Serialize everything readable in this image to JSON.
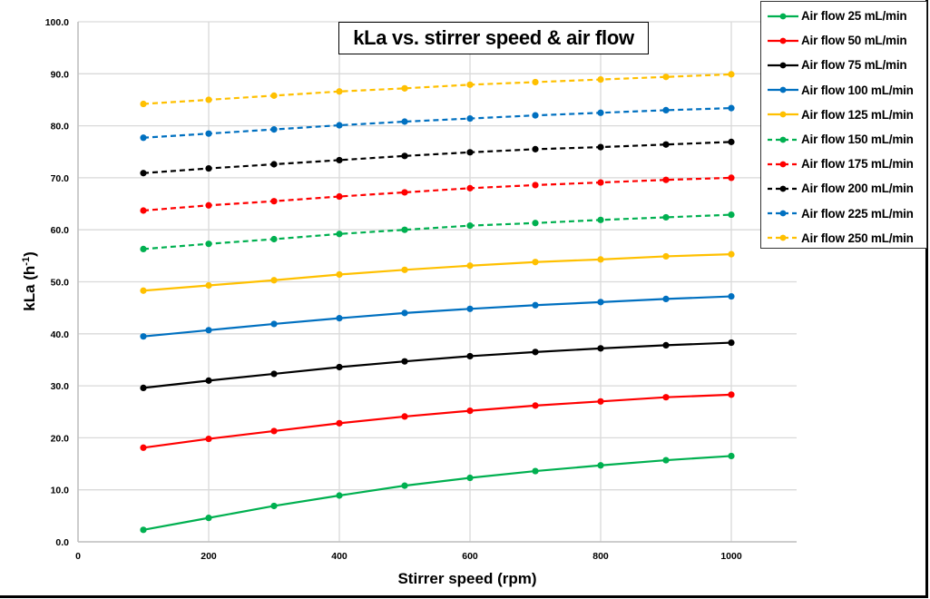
{
  "chart_data": {
    "type": "line",
    "title": "kLa vs. stirrer speed & air flow",
    "xlabel": "Stirrer speed (rpm)",
    "ylabel": "kLa (h-1)",
    "ylabel_main": "kLa (h",
    "ylabel_sup": "-1",
    "ylabel_close": ")",
    "xlim": [
      0,
      1100
    ],
    "ylim": [
      0,
      100
    ],
    "x_ticks": [
      0,
      200,
      400,
      600,
      800,
      1000
    ],
    "y_ticks": [
      "0.0",
      "10.0",
      "20.0",
      "30.0",
      "40.0",
      "50.0",
      "60.0",
      "70.0",
      "80.0",
      "90.0",
      "100.0"
    ],
    "grid": true,
    "legend_position": "top-right (outside plot)",
    "x": [
      100,
      200,
      300,
      400,
      500,
      600,
      700,
      800,
      900,
      1000
    ],
    "series": [
      {
        "name": "Air flow 25 mL/min",
        "color": "#00B050",
        "dash": false,
        "values": [
          2.3,
          4.6,
          6.9,
          8.9,
          10.8,
          12.3,
          13.6,
          14.7,
          15.7,
          16.5
        ]
      },
      {
        "name": "Air flow 50 mL/min",
        "color": "#FF0000",
        "dash": false,
        "values": [
          18.1,
          19.8,
          21.3,
          22.8,
          24.1,
          25.2,
          26.2,
          27.0,
          27.8,
          28.3
        ]
      },
      {
        "name": "Air flow 75 mL/min",
        "color": "#000000",
        "dash": false,
        "values": [
          29.6,
          31.0,
          32.3,
          33.6,
          34.7,
          35.7,
          36.5,
          37.2,
          37.8,
          38.3
        ]
      },
      {
        "name": "Air flow 100 mL/min",
        "color": "#0070C0",
        "dash": false,
        "values": [
          39.5,
          40.7,
          41.9,
          43.0,
          44.0,
          44.8,
          45.5,
          46.1,
          46.7,
          47.2
        ]
      },
      {
        "name": "Air flow 125 mL/min",
        "color": "#FFC000",
        "dash": false,
        "values": [
          48.3,
          49.3,
          50.3,
          51.4,
          52.3,
          53.1,
          53.8,
          54.3,
          54.9,
          55.3
        ]
      },
      {
        "name": "Air flow 150 mL/min",
        "color": "#00B050",
        "dash": true,
        "values": [
          56.3,
          57.3,
          58.2,
          59.2,
          60.0,
          60.8,
          61.3,
          61.9,
          62.4,
          62.9
        ]
      },
      {
        "name": "Air flow 175 mL/min",
        "color": "#FF0000",
        "dash": true,
        "values": [
          63.7,
          64.7,
          65.5,
          66.4,
          67.2,
          68.0,
          68.6,
          69.1,
          69.6,
          70.0
        ]
      },
      {
        "name": "Air flow 200 mL/min",
        "color": "#000000",
        "dash": true,
        "values": [
          70.9,
          71.8,
          72.6,
          73.4,
          74.2,
          74.9,
          75.5,
          75.9,
          76.4,
          76.9
        ]
      },
      {
        "name": "Air flow 225 mL/min",
        "color": "#0070C0",
        "dash": true,
        "values": [
          77.7,
          78.5,
          79.3,
          80.1,
          80.8,
          81.4,
          82.0,
          82.5,
          83.0,
          83.4
        ]
      },
      {
        "name": "Air flow 250 mL/min",
        "color": "#FFC000",
        "dash": true,
        "values": [
          84.2,
          85.0,
          85.8,
          86.6,
          87.2,
          87.9,
          88.4,
          88.9,
          89.4,
          89.9
        ]
      }
    ]
  }
}
